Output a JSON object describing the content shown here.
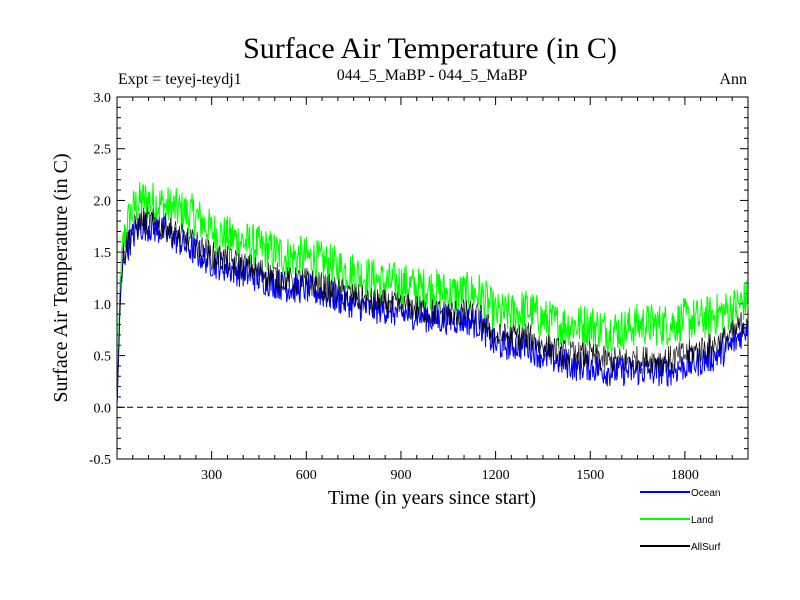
{
  "chart_data": {
    "type": "line",
    "title": "Surface Air Temperature (in C)",
    "subtitle_left": "Expt = teyej-teydj1",
    "subtitle_center": "044_5_MaBP - 044_5_MaBP",
    "subtitle_right": "Ann",
    "xlabel": "Time (in years since start)",
    "ylabel": "Surface Air Temperature (in C)",
    "xlim": [
      0,
      2000
    ],
    "ylim": [
      -0.5,
      3.0
    ],
    "xticks": [
      300,
      600,
      900,
      1200,
      1500,
      1800
    ],
    "xtick_labels": [
      "300",
      "600",
      "900",
      "1200",
      "1500",
      "1800"
    ],
    "yticks": [
      -0.5,
      0.0,
      0.5,
      1.0,
      1.5,
      2.0,
      2.5,
      3.0
    ],
    "ytick_labels": [
      "-0.5",
      "0.0",
      "0.5",
      "1.0",
      "1.5",
      "2.0",
      "2.5",
      "3.0"
    ],
    "reference_line": {
      "y": 0.0,
      "style": "dashed"
    },
    "legend_position": "bottom-right",
    "series": [
      {
        "name": "Land",
        "color": "#00ff00",
        "x": [
          0,
          10,
          20,
          40,
          60,
          80,
          100,
          150,
          200,
          250,
          300,
          350,
          400,
          450,
          500,
          550,
          600,
          650,
          700,
          750,
          800,
          850,
          900,
          950,
          1000,
          1050,
          1100,
          1150,
          1200,
          1250,
          1300,
          1350,
          1400,
          1450,
          1500,
          1550,
          1600,
          1650,
          1700,
          1750,
          1800,
          1850,
          1900,
          1950,
          2000
        ],
        "values": [
          0.0,
          1.2,
          1.6,
          1.85,
          1.95,
          2.0,
          2.0,
          1.95,
          1.9,
          1.85,
          1.7,
          1.65,
          1.6,
          1.55,
          1.5,
          1.45,
          1.45,
          1.4,
          1.35,
          1.3,
          1.25,
          1.2,
          1.2,
          1.15,
          1.15,
          1.1,
          1.1,
          1.1,
          0.9,
          0.9,
          0.95,
          0.85,
          0.8,
          0.8,
          0.8,
          0.75,
          0.75,
          0.8,
          0.8,
          0.8,
          0.85,
          0.85,
          0.9,
          0.95,
          1.05
        ]
      },
      {
        "name": "Ocean",
        "color": "#0000ff",
        "x": [
          0,
          10,
          20,
          40,
          60,
          80,
          100,
          150,
          200,
          250,
          300,
          350,
          400,
          450,
          500,
          550,
          600,
          650,
          700,
          750,
          800,
          850,
          900,
          950,
          1000,
          1050,
          1100,
          1150,
          1200,
          1250,
          1300,
          1350,
          1400,
          1450,
          1500,
          1550,
          1600,
          1650,
          1700,
          1750,
          1800,
          1850,
          1900,
          1950,
          2000
        ],
        "values": [
          0.0,
          1.0,
          1.45,
          1.6,
          1.7,
          1.75,
          1.75,
          1.7,
          1.6,
          1.5,
          1.4,
          1.35,
          1.3,
          1.25,
          1.2,
          1.15,
          1.15,
          1.1,
          1.05,
          1.0,
          0.95,
          0.95,
          0.9,
          0.9,
          0.85,
          0.85,
          0.85,
          0.8,
          0.6,
          0.6,
          0.6,
          0.5,
          0.45,
          0.4,
          0.4,
          0.35,
          0.35,
          0.35,
          0.35,
          0.35,
          0.4,
          0.45,
          0.5,
          0.6,
          0.8
        ]
      },
      {
        "name": "AllSurf",
        "color": "#000000",
        "x": [
          0,
          10,
          20,
          40,
          60,
          80,
          100,
          150,
          200,
          250,
          300,
          350,
          400,
          450,
          500,
          550,
          600,
          650,
          700,
          750,
          800,
          850,
          900,
          950,
          1000,
          1050,
          1100,
          1150,
          1200,
          1250,
          1300,
          1350,
          1400,
          1450,
          1500,
          1550,
          1600,
          1650,
          1700,
          1750,
          1800,
          1850,
          1900,
          1950,
          2000
        ],
        "values": [
          0.0,
          1.05,
          1.5,
          1.65,
          1.75,
          1.8,
          1.8,
          1.75,
          1.65,
          1.57,
          1.47,
          1.42,
          1.37,
          1.32,
          1.27,
          1.22,
          1.22,
          1.17,
          1.12,
          1.07,
          1.02,
          1.0,
          0.97,
          0.96,
          0.92,
          0.91,
          0.91,
          0.87,
          0.68,
          0.68,
          0.69,
          0.59,
          0.54,
          0.5,
          0.5,
          0.45,
          0.45,
          0.46,
          0.46,
          0.46,
          0.51,
          0.56,
          0.61,
          0.7,
          0.88
        ]
      }
    ],
    "legend": [
      "Ocean",
      "Land",
      "AllSurf"
    ]
  }
}
